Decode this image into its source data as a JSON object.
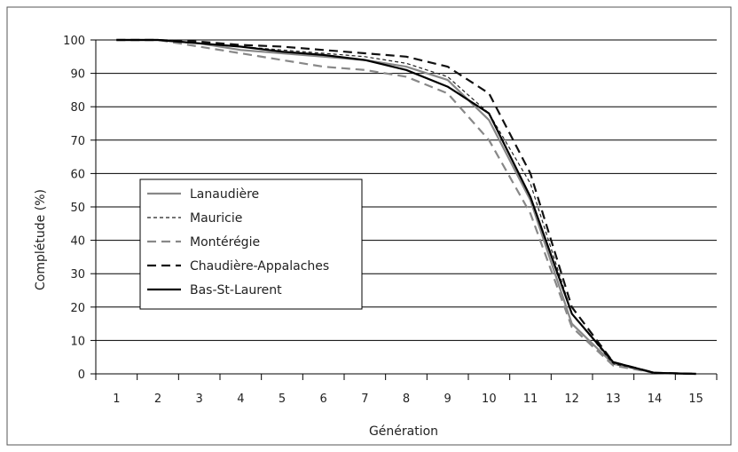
{
  "chart_data": {
    "type": "line",
    "title": "",
    "xlabel": "Génération",
    "ylabel": "Complétude (%)",
    "x": [
      1,
      2,
      3,
      4,
      5,
      6,
      7,
      8,
      9,
      10,
      11,
      12,
      13,
      14,
      15
    ],
    "xticks": [
      "1",
      "2",
      "3",
      "4",
      "5",
      "6",
      "7",
      "8",
      "9",
      "10",
      "11",
      "12",
      "13",
      "14",
      "15"
    ],
    "ylim": [
      0,
      100
    ],
    "yticks": [
      "0",
      "10",
      "20",
      "30",
      "40",
      "50",
      "60",
      "70",
      "80",
      "90",
      "100"
    ],
    "grid": "horizontal",
    "legend_position": "center-left",
    "series": [
      {
        "name": "Lanaudière",
        "color": "#888888",
        "dash": "solid",
        "values": [
          100,
          100,
          99,
          97,
          96,
          95,
          94,
          92,
          88,
          76,
          52,
          15,
          3,
          0.3,
          0
        ]
      },
      {
        "name": "Mauricie",
        "color": "#222222",
        "dash": "short-dash",
        "values": [
          100,
          100,
          99,
          98,
          97,
          96,
          95,
          93,
          89,
          78,
          57,
          18,
          3,
          0.3,
          0
        ]
      },
      {
        "name": "Montérégie",
        "color": "#888888",
        "dash": "long-dash",
        "values": [
          100,
          100,
          98,
          96,
          94,
          92,
          91,
          89,
          84,
          70,
          48,
          14,
          2.5,
          0.3,
          0
        ]
      },
      {
        "name": "Chaudière-Appalaches",
        "color": "#111111",
        "dash": "long-dash",
        "values": [
          100,
          100,
          99.5,
          98.5,
          98,
          97,
          96,
          95,
          92,
          84,
          60,
          20,
          3.5,
          0.3,
          0
        ]
      },
      {
        "name": "Bas-St-Laurent",
        "color": "#000000",
        "dash": "solid",
        "values": [
          100,
          100,
          99,
          98,
          96.5,
          95.5,
          94,
          91,
          86,
          78,
          53,
          18,
          3.5,
          0.3,
          0
        ]
      }
    ]
  }
}
